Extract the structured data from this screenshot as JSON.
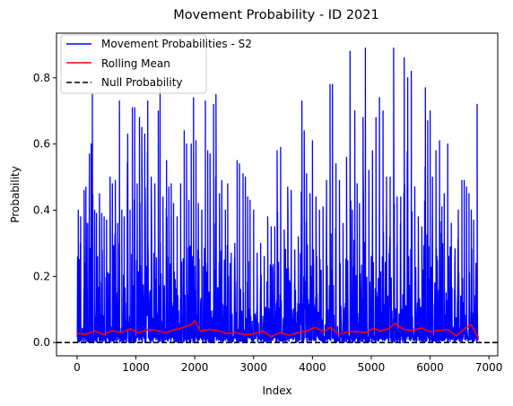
{
  "chart_data": {
    "type": "line",
    "title": "Movement Probability - ID 2021",
    "xlabel": "Index",
    "ylabel": "Probability",
    "xlim": [
      -350,
      7150
    ],
    "ylim": [
      -0.04,
      0.935
    ],
    "xticks": [
      0,
      1000,
      2000,
      3000,
      4000,
      5000,
      6000,
      7000
    ],
    "xtick_labels": [
      "0",
      "1000",
      "2000",
      "3000",
      "4000",
      "5000",
      "6000",
      "7000"
    ],
    "yticks": [
      0.0,
      0.2,
      0.4,
      0.6,
      0.8
    ],
    "ytick_labels": [
      "0.0",
      "0.2",
      "0.4",
      "0.6",
      "0.8"
    ],
    "grid": false,
    "legend_position": "top-left",
    "series": [
      {
        "name": "Movement Probabilities - S2",
        "color": "#0000ff",
        "style": "solid",
        "x_range": [
          0,
          6820
        ],
        "peaks": [
          [
            20,
            0.4
          ],
          [
            60,
            0.38
          ],
          [
            120,
            0.46
          ],
          [
            150,
            0.47
          ],
          [
            180,
            0.36
          ],
          [
            210,
            0.57
          ],
          [
            240,
            0.6
          ],
          [
            260,
            0.75
          ],
          [
            300,
            0.4
          ],
          [
            330,
            0.39
          ],
          [
            380,
            0.45
          ],
          [
            420,
            0.39
          ],
          [
            460,
            0.38
          ],
          [
            500,
            0.37
          ],
          [
            560,
            0.5
          ],
          [
            600,
            0.48
          ],
          [
            650,
            0.49
          ],
          [
            690,
            0.36
          ],
          [
            720,
            0.73
          ],
          [
            760,
            0.4
          ],
          [
            800,
            0.38
          ],
          [
            860,
            0.63
          ],
          [
            900,
            0.4
          ],
          [
            940,
            0.71
          ],
          [
            980,
            0.71
          ],
          [
            1020,
            0.48
          ],
          [
            1060,
            0.68
          ],
          [
            1100,
            0.65
          ],
          [
            1150,
            0.63
          ],
          [
            1200,
            0.73
          ],
          [
            1260,
            0.5
          ],
          [
            1320,
            0.48
          ],
          [
            1380,
            0.7
          ],
          [
            1410,
            0.77
          ],
          [
            1460,
            0.44
          ],
          [
            1520,
            0.55
          ],
          [
            1560,
            0.47
          ],
          [
            1600,
            0.48
          ],
          [
            1640,
            0.42
          ],
          [
            1700,
            0.38
          ],
          [
            1760,
            0.48
          ],
          [
            1820,
            0.64
          ],
          [
            1860,
            0.6
          ],
          [
            1900,
            0.43
          ],
          [
            1940,
            0.6
          ],
          [
            1980,
            0.74
          ],
          [
            2020,
            0.61
          ],
          [
            2060,
            0.42
          ],
          [
            2120,
            0.4
          ],
          [
            2180,
            0.73
          ],
          [
            2220,
            0.58
          ],
          [
            2260,
            0.57
          ],
          [
            2320,
            0.72
          ],
          [
            2360,
            0.75
          ],
          [
            2420,
            0.45
          ],
          [
            2460,
            0.49
          ],
          [
            2520,
            0.4
          ],
          [
            2560,
            0.48
          ],
          [
            2620,
            0.27
          ],
          [
            2680,
            0.3
          ],
          [
            2720,
            0.55
          ],
          [
            2760,
            0.54
          ],
          [
            2820,
            0.51
          ],
          [
            2860,
            0.5
          ],
          [
            2900,
            0.44
          ],
          [
            2940,
            0.43
          ],
          [
            3000,
            0.4
          ],
          [
            3060,
            0.27
          ],
          [
            3120,
            0.3
          ],
          [
            3180,
            0.26
          ],
          [
            3240,
            0.38
          ],
          [
            3300,
            0.35
          ],
          [
            3360,
            0.35
          ],
          [
            3400,
            0.58
          ],
          [
            3460,
            0.59
          ],
          [
            3520,
            0.34
          ],
          [
            3580,
            0.47
          ],
          [
            3640,
            0.46
          ],
          [
            3700,
            0.28
          ],
          [
            3760,
            0.32
          ],
          [
            3820,
            0.73
          ],
          [
            3860,
            0.64
          ],
          [
            3900,
            0.51
          ],
          [
            3960,
            0.45
          ],
          [
            4000,
            0.61
          ],
          [
            4060,
            0.44
          ],
          [
            4120,
            0.4
          ],
          [
            4180,
            0.41
          ],
          [
            4240,
            0.49
          ],
          [
            4300,
            0.78
          ],
          [
            4340,
            0.78
          ],
          [
            4400,
            0.54
          ],
          [
            4460,
            0.49
          ],
          [
            4520,
            0.36
          ],
          [
            4580,
            0.56
          ],
          [
            4640,
            0.88
          ],
          [
            4680,
            0.4
          ],
          [
            4720,
            0.7
          ],
          [
            4760,
            0.48
          ],
          [
            4800,
            0.42
          ],
          [
            4860,
            0.68
          ],
          [
            4900,
            0.89
          ],
          [
            4960,
            0.52
          ],
          [
            5020,
            0.58
          ],
          [
            5080,
            0.68
          ],
          [
            5140,
            0.74
          ],
          [
            5200,
            0.7
          ],
          [
            5260,
            0.5
          ],
          [
            5320,
            0.5
          ],
          [
            5380,
            0.89
          ],
          [
            5440,
            0.44
          ],
          [
            5500,
            0.44
          ],
          [
            5560,
            0.86
          ],
          [
            5620,
            0.8
          ],
          [
            5680,
            0.82
          ],
          [
            5740,
            0.47
          ],
          [
            5800,
            0.38
          ],
          [
            5860,
            0.35
          ],
          [
            5920,
            0.77
          ],
          [
            5960,
            0.67
          ],
          [
            6000,
            0.7
          ],
          [
            6040,
            0.5
          ],
          [
            6100,
            0.58
          ],
          [
            6160,
            0.61
          ],
          [
            6200,
            0.41
          ],
          [
            6240,
            0.45
          ],
          [
            6300,
            0.6
          ],
          [
            6360,
            0.36
          ],
          [
            6420,
            0.23
          ],
          [
            6480,
            0.4
          ],
          [
            6540,
            0.49
          ],
          [
            6580,
            0.49
          ],
          [
            6620,
            0.47
          ],
          [
            6660,
            0.45
          ],
          [
            6700,
            0.4
          ],
          [
            6740,
            0.37
          ],
          [
            6800,
            0.72
          ]
        ]
      },
      {
        "name": "Rolling Mean",
        "color": "#ff0000",
        "style": "solid",
        "x": [
          0,
          150,
          300,
          450,
          600,
          750,
          900,
          1050,
          1200,
          1350,
          1500,
          1650,
          1800,
          1950,
          2000,
          2100,
          2250,
          2400,
          2550,
          2700,
          2850,
          3000,
          3150,
          3300,
          3450,
          3600,
          3750,
          3900,
          4050,
          4200,
          4300,
          4450,
          4600,
          4750,
          4900,
          5050,
          5150,
          5300,
          5400,
          5550,
          5700,
          5850,
          6000,
          6150,
          6300,
          6450,
          6600,
          6700,
          6820
        ],
        "y": [
          0.028,
          0.025,
          0.035,
          0.024,
          0.036,
          0.03,
          0.042,
          0.03,
          0.04,
          0.036,
          0.03,
          0.038,
          0.045,
          0.056,
          0.066,
          0.034,
          0.04,
          0.036,
          0.027,
          0.03,
          0.024,
          0.026,
          0.035,
          0.018,
          0.03,
          0.022,
          0.03,
          0.035,
          0.046,
          0.032,
          0.046,
          0.025,
          0.032,
          0.034,
          0.03,
          0.044,
          0.034,
          0.042,
          0.058,
          0.04,
          0.036,
          0.044,
          0.033,
          0.036,
          0.04,
          0.02,
          0.044,
          0.054,
          0.014
        ]
      },
      {
        "name": "Null Probability",
        "color": "#000000",
        "style": "dashed",
        "y": 0.0
      }
    ]
  }
}
